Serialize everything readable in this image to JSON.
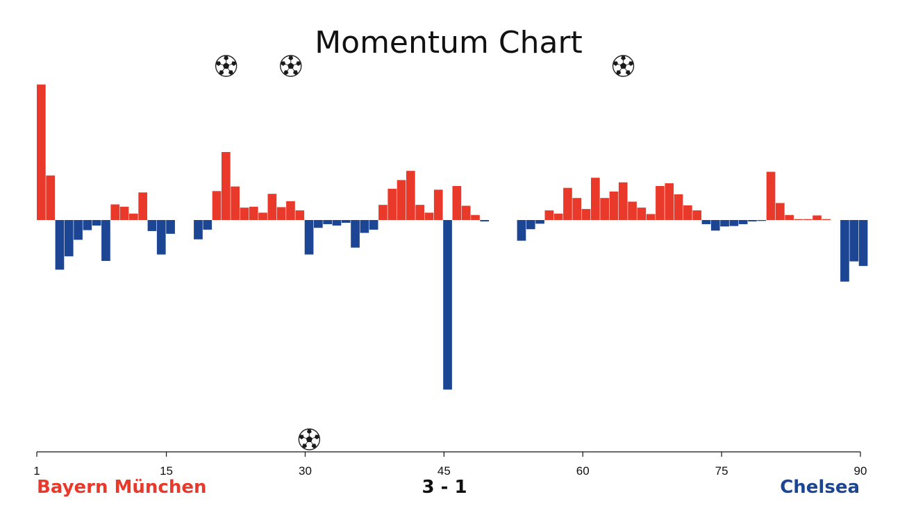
{
  "chart_data": {
    "type": "bar",
    "title": "Momentum Chart",
    "xlabel": "",
    "ylabel": "",
    "x_range": [
      1,
      90
    ],
    "x_ticks": [
      1,
      15,
      30,
      45,
      60,
      75,
      90
    ],
    "ylim": [
      -39,
      33
    ],
    "grid": false,
    "colors": {
      "home": "#e8392b",
      "away": "#1c4694",
      "text": "#111111"
    },
    "minutes": [
      1,
      2,
      3,
      4,
      5,
      6,
      7,
      8,
      9,
      10,
      11,
      12,
      13,
      14,
      15,
      16,
      17,
      18,
      19,
      20,
      21,
      22,
      23,
      24,
      25,
      26,
      27,
      28,
      29,
      30,
      31,
      32,
      33,
      34,
      35,
      36,
      37,
      38,
      39,
      40,
      41,
      42,
      43,
      44,
      45,
      46,
      47,
      48,
      49,
      50,
      51,
      52,
      53,
      54,
      55,
      56,
      57,
      58,
      59,
      60,
      61,
      62,
      63,
      64,
      65,
      66,
      67,
      68,
      69,
      70,
      71,
      72,
      73,
      74,
      75,
      76,
      77,
      78,
      79,
      80,
      81,
      82,
      83,
      84,
      85,
      86,
      87,
      88,
      89,
      90
    ],
    "values": [
      29.5,
      9.7,
      -10.8,
      -7.9,
      -4.3,
      -2.2,
      -1.2,
      -8.9,
      3.4,
      2.9,
      1.4,
      6.0,
      -2.4,
      -7.5,
      -3.0,
      0,
      0,
      -4.2,
      -2.1,
      6.3,
      14.8,
      7.3,
      2.7,
      2.9,
      1.6,
      5.7,
      2.8,
      4.1,
      2.1,
      -7.5,
      -1.7,
      -0.9,
      -1.2,
      -0.6,
      -6.0,
      -2.8,
      -2.1,
      3.3,
      6.8,
      8.7,
      10.7,
      3.3,
      1.6,
      6.6,
      -36.9,
      7.4,
      3.1,
      1.1,
      -0.3,
      0,
      0,
      0,
      -4.5,
      -2.0,
      -0.8,
      2.1,
      1.4,
      7.0,
      4.8,
      2.4,
      9.2,
      4.8,
      6.2,
      8.2,
      4.0,
      2.7,
      1.3,
      7.4,
      8.0,
      5.6,
      3.2,
      2.1,
      -0.9,
      -2.3,
      -1.4,
      -1.3,
      -0.9,
      -0.3,
      -0.2,
      10.5,
      3.7,
      1.1,
      0.2,
      0.2,
      1.0,
      0.2,
      0,
      -13.4,
      -9.0,
      -10.0
    ],
    "goals": [
      {
        "team": "home",
        "minute": 21
      },
      {
        "team": "home",
        "minute": 28
      },
      {
        "team": "away",
        "minute": 30
      },
      {
        "team": "home",
        "minute": 64
      }
    ]
  },
  "home_team": "Bayern München",
  "away_team": "Chelsea",
  "score": "3 - 1",
  "goal_icon": "soccer-ball-icon"
}
